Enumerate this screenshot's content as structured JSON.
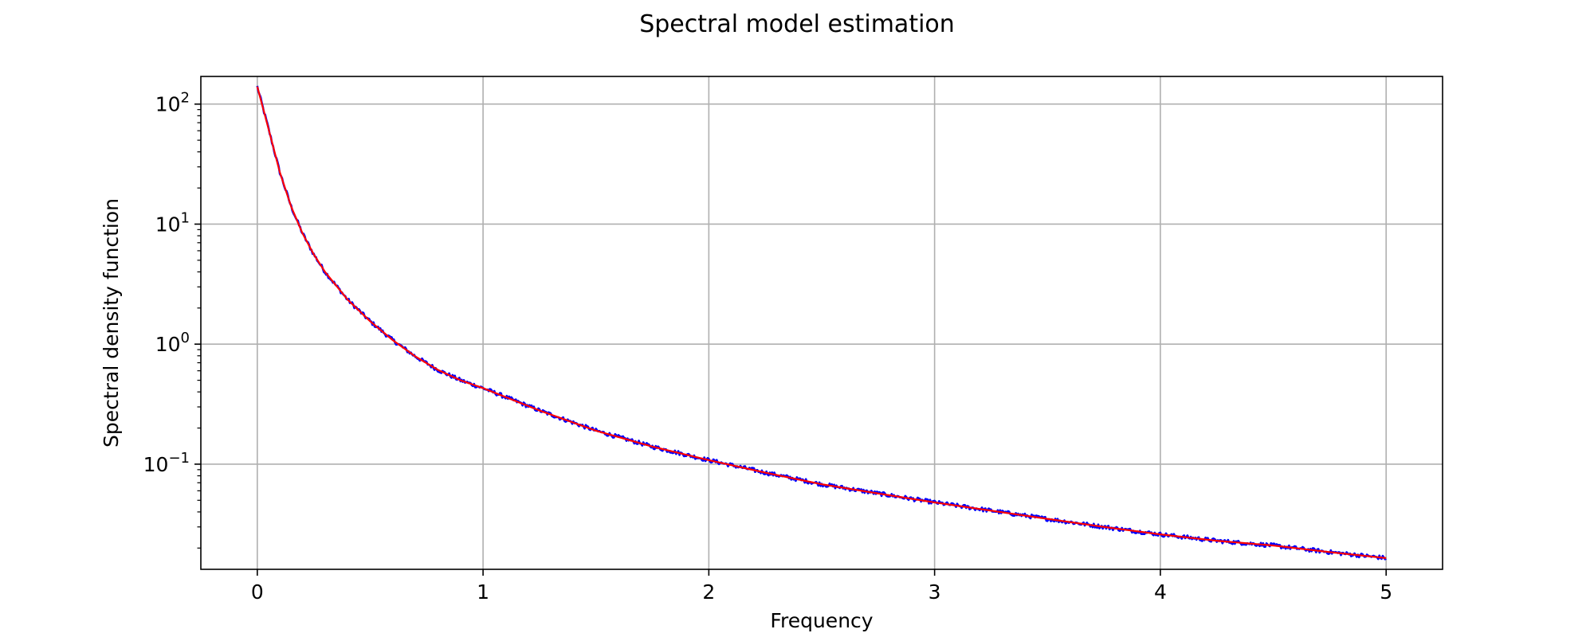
{
  "chart_data": {
    "type": "line",
    "title": "Spectral model estimation",
    "xlabel": "Frequency",
    "ylabel": "Spectral density function",
    "xlim": [
      -0.25,
      5.25
    ],
    "ylim": [
      0.0133,
      170
    ],
    "yscale": "log",
    "grid": true,
    "x_ticks": [
      0,
      1,
      2,
      3,
      4,
      5
    ],
    "x_tick_labels": [
      "0",
      "1",
      "2",
      "3",
      "4",
      "5"
    ],
    "y_ticks": [
      {
        "value": 100,
        "base": "10",
        "exp": "2"
      },
      {
        "value": 10,
        "base": "10",
        "exp": "1"
      },
      {
        "value": 1,
        "base": "10",
        "exp": "0"
      },
      {
        "value": 0.1,
        "base": "10",
        "exp": "−1"
      }
    ],
    "x_range": [
      0,
      5
    ],
    "series": [
      {
        "color": "#0000ff",
        "x": [
          0.0,
          0.05,
          0.1,
          0.15,
          0.2,
          0.25,
          0.3,
          0.4,
          0.5,
          0.6,
          0.7,
          0.8,
          0.9,
          1.0,
          1.25,
          1.5,
          1.75,
          2.0,
          2.25,
          2.5,
          2.75,
          3.0,
          3.25,
          3.5,
          3.75,
          4.0,
          4.25,
          4.5,
          4.75,
          5.0
        ],
        "y": [
          140,
          62,
          27,
          14,
          8.4,
          5.6,
          4.0,
          2.35,
          1.55,
          1.08,
          0.79,
          0.61,
          0.5,
          0.43,
          0.28,
          0.19,
          0.14,
          0.108,
          0.085,
          0.068,
          0.057,
          0.048,
          0.041,
          0.035,
          0.03,
          0.026,
          0.023,
          0.021,
          0.0185,
          0.0165
        ]
      },
      {
        "color": "#ff0000",
        "x": [
          0.0,
          0.05,
          0.1,
          0.15,
          0.2,
          0.25,
          0.3,
          0.4,
          0.5,
          0.6,
          0.7,
          0.8,
          0.9,
          1.0,
          1.25,
          1.5,
          1.75,
          2.0,
          2.25,
          2.5,
          2.75,
          3.0,
          3.25,
          3.5,
          3.75,
          4.0,
          4.25,
          4.5,
          4.75,
          5.0
        ],
        "y": [
          140,
          62,
          27,
          14,
          8.4,
          5.6,
          4.0,
          2.35,
          1.55,
          1.08,
          0.79,
          0.61,
          0.5,
          0.43,
          0.28,
          0.19,
          0.14,
          0.108,
          0.085,
          0.068,
          0.057,
          0.048,
          0.041,
          0.035,
          0.03,
          0.026,
          0.023,
          0.021,
          0.0185,
          0.0165
        ]
      }
    ]
  }
}
